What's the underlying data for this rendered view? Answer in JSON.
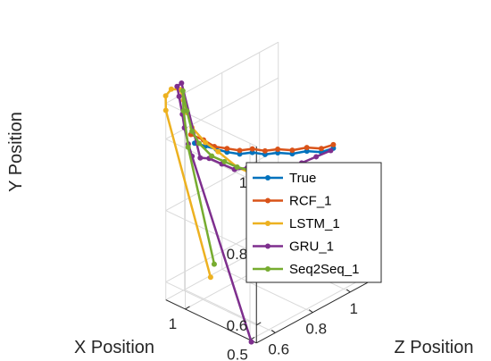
{
  "chart_data": {
    "type": "line-3d",
    "xlabel": "X Position",
    "ylabel": "Y Position",
    "zlabel": "Z Position",
    "x_ticks": [
      {
        "value": 0.5,
        "label": "0.5"
      },
      {
        "value": 1,
        "label": "1"
      }
    ],
    "y_ticks": [
      {
        "value": 0.6,
        "label": "0.6"
      },
      {
        "value": 0.8,
        "label": "0.8"
      },
      {
        "value": 1,
        "label": "1"
      }
    ],
    "z_ticks": [
      {
        "value": 0.6,
        "label": "0.6"
      },
      {
        "value": 0.8,
        "label": "0.8"
      },
      {
        "value": 1,
        "label": "1"
      }
    ],
    "xlim": [
      0.45,
      1.15
    ],
    "ylim": [
      0.55,
      1.1
    ],
    "zlim": [
      0.5,
      1.1
    ],
    "grid": true,
    "legend_position": "center-right",
    "series": [
      {
        "name": "True",
        "color": "#0072BD",
        "points": [
          [
            1.0,
            1.0,
            0.55
          ],
          [
            0.96,
            0.99,
            0.58
          ],
          [
            0.92,
            0.98,
            0.61
          ],
          [
            0.88,
            0.97,
            0.64
          ],
          [
            0.84,
            0.96,
            0.68
          ],
          [
            0.8,
            0.96,
            0.72
          ],
          [
            0.76,
            0.95,
            0.76
          ],
          [
            0.72,
            0.95,
            0.8
          ],
          [
            0.68,
            0.94,
            0.85
          ],
          [
            0.64,
            0.94,
            0.9
          ],
          [
            0.6,
            0.93,
            0.95
          ],
          [
            0.58,
            0.93,
            1.0
          ]
        ]
      },
      {
        "name": "RCF_1",
        "color": "#D95319",
        "points": [
          [
            1.0,
            1.03,
            0.53
          ],
          [
            0.96,
            1.01,
            0.57
          ],
          [
            0.92,
            0.99,
            0.6
          ],
          [
            0.88,
            0.98,
            0.64
          ],
          [
            0.84,
            0.97,
            0.68
          ],
          [
            0.8,
            0.97,
            0.72
          ],
          [
            0.76,
            0.96,
            0.76
          ],
          [
            0.72,
            0.96,
            0.8
          ],
          [
            0.68,
            0.95,
            0.85
          ],
          [
            0.64,
            0.95,
            0.9
          ],
          [
            0.6,
            0.94,
            0.95
          ],
          [
            0.58,
            0.94,
            1.0
          ]
        ]
      },
      {
        "name": "LSTM_1",
        "color": "#EDB120",
        "points": [
          [
            0.92,
            0.63,
            0.58
          ],
          [
            1.15,
            1.08,
            0.5
          ],
          [
            1.18,
            1.11,
            0.52
          ],
          [
            1.18,
            1.12,
            0.55
          ],
          [
            1.14,
            1.12,
            0.57
          ],
          [
            1.1,
            1.1,
            0.56
          ],
          [
            1.07,
            1.07,
            0.56
          ],
          [
            1.02,
            1.04,
            0.55
          ],
          [
            0.96,
            1.0,
            0.58
          ],
          [
            0.92,
            0.97,
            0.62
          ],
          [
            0.86,
            0.92,
            0.68
          ],
          [
            0.8,
            0.89,
            0.74
          ],
          [
            0.75,
            0.87,
            0.8
          ],
          [
            0.7,
            0.86,
            0.86
          ],
          [
            0.66,
            0.86,
            0.91
          ],
          [
            0.63,
            0.86,
            0.96
          ]
        ]
      },
      {
        "name": "GRU_1",
        "color": "#7E2F8E",
        "points": [
          [
            0.75,
            0.45,
            0.68
          ],
          [
            1.02,
            0.96,
            0.55
          ],
          [
            1.02,
            1.0,
            0.53
          ],
          [
            1.05,
            1.04,
            0.53
          ],
          [
            1.08,
            1.07,
            0.54
          ],
          [
            1.12,
            1.11,
            0.55
          ],
          [
            1.15,
            1.13,
            0.56
          ],
          [
            1.13,
            1.14,
            0.57
          ],
          [
            1.0,
            0.95,
            0.58
          ],
          [
            0.96,
            0.95,
            0.6
          ],
          [
            0.92,
            0.93,
            0.64
          ],
          [
            0.88,
            0.91,
            0.68
          ],
          [
            0.84,
            0.91,
            0.72
          ],
          [
            0.8,
            0.9,
            0.76
          ],
          [
            0.76,
            0.9,
            0.8
          ],
          [
            0.72,
            0.9,
            0.85
          ],
          [
            0.68,
            0.9,
            0.9
          ],
          [
            0.64,
            0.91,
            0.95
          ],
          [
            0.6,
            0.92,
            1.0
          ]
        ]
      },
      {
        "name": "Seq2Seq_1",
        "color": "#77AC30",
        "points": [
          [
            0.95,
            0.65,
            0.62
          ],
          [
            1.05,
            0.98,
            0.55
          ],
          [
            1.1,
            1.07,
            0.56
          ],
          [
            1.12,
            1.12,
            0.57
          ],
          [
            1.06,
            1.08,
            0.55
          ],
          [
            1.02,
            1.03,
            0.55
          ],
          [
            0.98,
            1.0,
            0.56
          ],
          [
            0.94,
            0.96,
            0.6
          ],
          [
            0.9,
            0.94,
            0.64
          ],
          [
            0.86,
            0.92,
            0.68
          ],
          [
            0.8,
            0.9,
            0.74
          ],
          [
            0.74,
            0.88,
            0.8
          ],
          [
            0.69,
            0.87,
            0.86
          ],
          [
            0.64,
            0.87,
            0.92
          ],
          [
            0.6,
            0.87,
            0.98
          ]
        ]
      }
    ]
  }
}
